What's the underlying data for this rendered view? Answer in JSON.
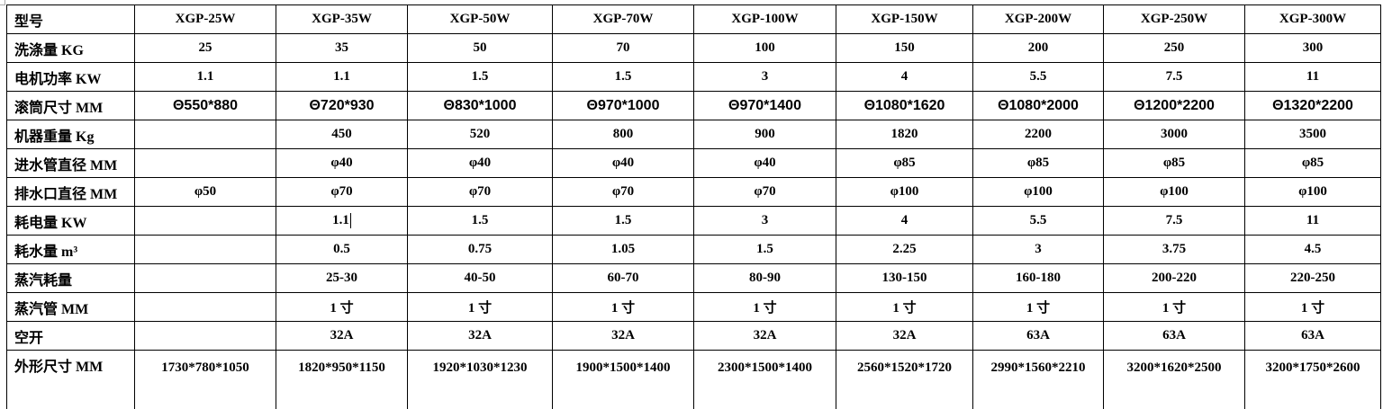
{
  "header": {
    "label": "型号",
    "models": [
      "XGP-25W",
      "XGP-35W",
      "XGP-50W",
      "XGP-70W",
      "XGP-100W",
      "XGP-150W",
      "XGP-200W",
      "XGP-250W",
      "XGP-300W"
    ]
  },
  "rows": [
    {
      "label": "洗涤量 KG",
      "values": [
        "25",
        "35",
        "50",
        "70",
        "100",
        "150",
        "200",
        "250",
        "300"
      ]
    },
    {
      "label": "电机功率 KW",
      "values": [
        "1.1",
        "1.1",
        "1.5",
        "1.5",
        "3",
        "4",
        "5.5",
        "7.5",
        "11"
      ]
    },
    {
      "label": "滚筒尺寸 MM",
      "values": [
        "Θ550*880",
        "Θ720*930",
        "Θ830*1000",
        "Θ970*1000",
        "Θ970*1400",
        "Θ1080*1620",
        "Θ1080*2000",
        "Θ1200*2200",
        "Θ1320*2200"
      ]
    },
    {
      "label": "机器重量 Kg",
      "values": [
        "",
        "450",
        "520",
        "800",
        "900",
        "1820",
        "2200",
        "3000",
        "3500"
      ]
    },
    {
      "label": "进水管直径 MM",
      "values": [
        "",
        "φ40",
        "φ40",
        "φ40",
        "φ40",
        "φ85",
        "φ85",
        "φ85",
        "φ85"
      ]
    },
    {
      "label": "排水口直径 MM",
      "values": [
        "φ50",
        "φ70",
        "φ70",
        "φ70",
        "φ70",
        "φ100",
        "φ100",
        "φ100",
        "φ100"
      ]
    },
    {
      "label": "耗电量 KW",
      "values": [
        "",
        "1.1",
        "1.5",
        "1.5",
        "3",
        "4",
        "5.5",
        "7.5",
        "11"
      ]
    },
    {
      "label": "耗水量 m³",
      "values": [
        "",
        "0.5",
        "0.75",
        "1.05",
        "1.5",
        "2.25",
        "3",
        "3.75",
        "4.5"
      ]
    },
    {
      "label": "蒸汽耗量",
      "values": [
        "",
        "25-30",
        "40-50",
        "60-70",
        "80-90",
        "130-150",
        "160-180",
        "200-220",
        "220-250"
      ]
    },
    {
      "label": "蒸汽管 MM",
      "values": [
        "",
        "1 寸",
        "1 寸",
        "1 寸",
        "1 寸",
        "1 寸",
        "1 寸",
        "1 寸",
        "1 寸"
      ]
    },
    {
      "label": "空开",
      "values": [
        "",
        "32A",
        "32A",
        "32A",
        "32A",
        "32A",
        "63A",
        "63A",
        "63A"
      ]
    },
    {
      "label": "外形尺寸 MM",
      "values": [
        "1730*780*1050",
        "1820*950*1150",
        "1920*1030*1230",
        "1900*1500*1400",
        "2300*1500*1400",
        "2560*1520*1720",
        "2990*1560*2210",
        "3200*1620*2500",
        "3200*1750*2600"
      ]
    }
  ]
}
